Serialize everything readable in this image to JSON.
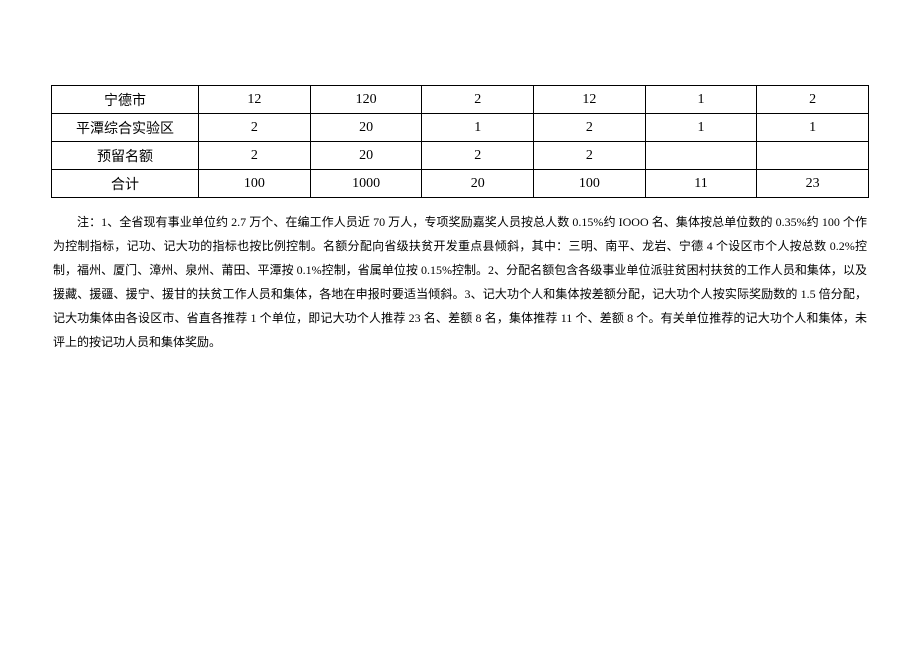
{
  "table": {
    "rows": [
      {
        "name": "宁德市",
        "c1": "12",
        "c2": "120",
        "c3": "2",
        "c4": "12",
        "c5": "1",
        "c6": "2"
      },
      {
        "name": "平潭综合实验区",
        "c1": "2",
        "c2": "20",
        "c3": "1",
        "c4": "2",
        "c5": "1",
        "c6": "1"
      },
      {
        "name": "预留名额",
        "c1": "2",
        "c2": "20",
        "c3": "2",
        "c4": "2",
        "c5": "",
        "c6": ""
      },
      {
        "name": "合计",
        "c1": "100",
        "c2": "1000",
        "c3": "20",
        "c4": "100",
        "c5": "11",
        "c6": "23"
      }
    ]
  },
  "notes": {
    "text": "注：1、全省现有事业单位约 2.7 万个、在编工作人员近 70 万人，专项奖励嘉奖人员按总人数 0.15%约 IOOO 名、集体按总单位数的 0.35%约 100 个作为控制指标，记功、记大功的指标也按比例控制。名额分配向省级扶贫开发重点县倾斜，其中：三明、南平、龙岩、宁德 4 个设区市个人按总数 0.2%控制，福州、厦门、漳州、泉州、莆田、平潭按 0.1%控制，省属单位按 0.15%控制。2、分配名额包含各级事业单位派驻贫困村扶贫的工作人员和集体，以及援藏、援疆、援宁、援甘的扶贫工作人员和集体，各地在申报时要适当倾斜。3、记大功个人和集体按差额分配，记大功个人按实际奖励数的 1.5 倍分配，记大功集体由各设区市、省直各推荐 1 个单位，即记大功个人推荐 23 名、差额 8 名，集体推荐 11 个、差额 8 个。有关单位推荐的记大功个人和集体，未评上的按记功人员和集体奖励。"
  },
  "style": {
    "table_border_color": "#000000",
    "background_color": "#ffffff",
    "text_color": "#000000",
    "table_fontsize": 14,
    "notes_fontsize": 12
  }
}
